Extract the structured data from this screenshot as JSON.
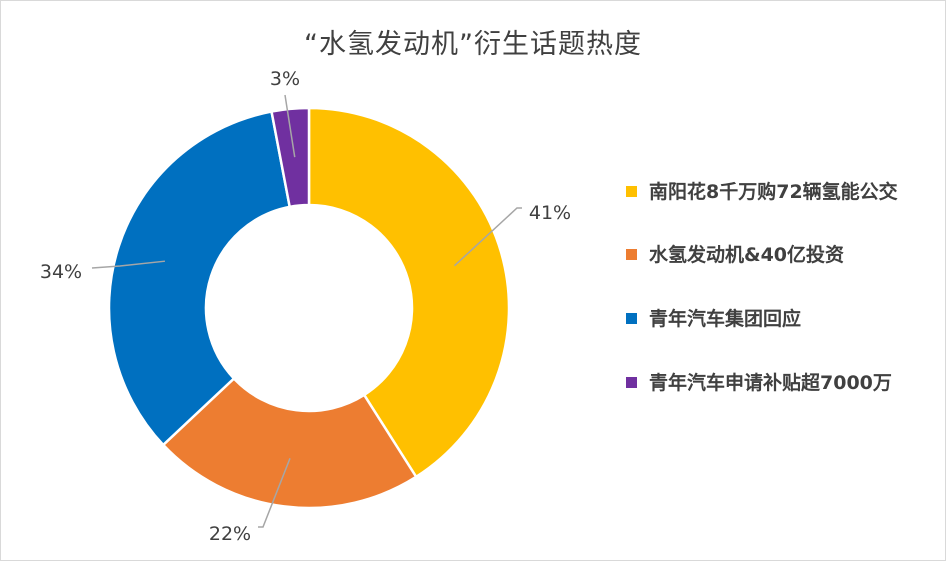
{
  "chart_data": {
    "type": "donut",
    "title": "“水氢发动机”衍生话题热度",
    "categories": [
      "南阳花8千万购72辆氢能公交",
      "水氢发动机&40亿投资",
      "青年汽车集团回应",
      "青年汽车申请补贴超7000万"
    ],
    "values": [
      41,
      22,
      34,
      3
    ],
    "data_labels": [
      "41%",
      "22%",
      "34%",
      "3%"
    ],
    "colors": [
      "#FFC000",
      "#ED7D31",
      "#0070C0",
      "#7030A0"
    ],
    "legend_position": "right"
  }
}
